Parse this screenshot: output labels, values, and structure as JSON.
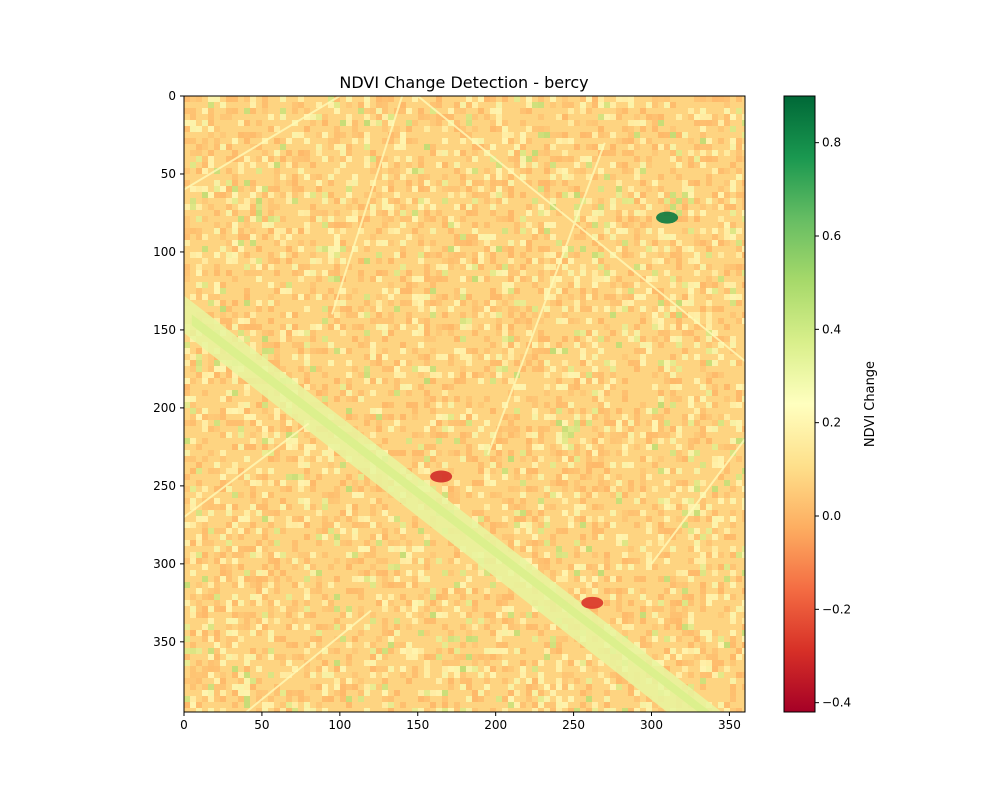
{
  "chart_data": {
    "type": "heatmap",
    "title": "NDVI Change Detection - bercy",
    "xlabel": "",
    "ylabel": "",
    "xlim": [
      0,
      360
    ],
    "ylim": [
      395,
      0
    ],
    "x_ticks": [
      0,
      50,
      100,
      150,
      200,
      250,
      300,
      350
    ],
    "y_ticks": [
      0,
      50,
      100,
      150,
      200,
      250,
      300,
      350
    ],
    "colormap": "RdYlGn",
    "colormap_stops": [
      "#a50026",
      "#d73027",
      "#f46d43",
      "#fdae61",
      "#fee08b",
      "#ffffbf",
      "#d9ef8b",
      "#a6d96a",
      "#66bd63",
      "#1a9850",
      "#006837"
    ],
    "colorbar": {
      "label": "NDVI Change",
      "range": [
        -0.42,
        0.9
      ],
      "ticks": [
        -0.4,
        -0.2,
        0.0,
        0.2,
        0.4,
        0.6,
        0.8
      ]
    },
    "dominant_value_range": [
      0.0,
      0.15
    ],
    "features": [
      {
        "name": "river-band",
        "value": 0.32,
        "direction": "upper-left to lower-right"
      },
      {
        "name": "red-spot-center",
        "value": -0.3,
        "x": 165,
        "y": 244
      },
      {
        "name": "red-spot-lower",
        "value": -0.28,
        "x": 262,
        "y": 325
      },
      {
        "name": "green-spot-upper-right",
        "value": 0.85,
        "x": 310,
        "y": 78
      }
    ]
  }
}
